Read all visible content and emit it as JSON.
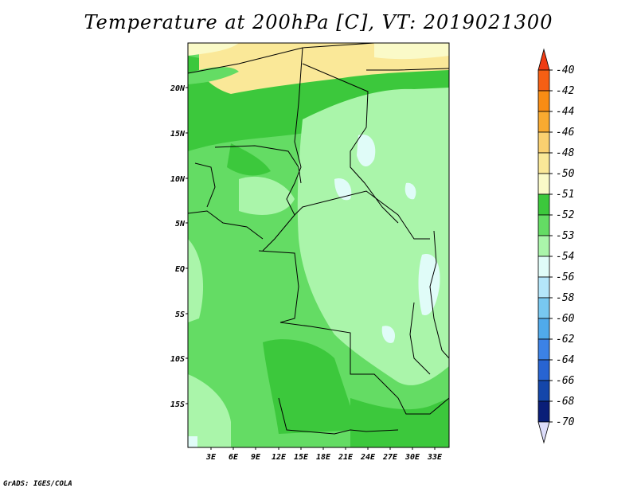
{
  "title": "Temperature at 200hPa [C], VT: 2019021300",
  "footer": "GrADS: IGES/COLA",
  "map": {
    "lat_labels": [
      "20N",
      "15N",
      "10N",
      "5N",
      "EQ",
      "5S",
      "10S",
      "15S"
    ],
    "lon_labels": [
      "3E",
      "6E",
      "9E",
      "12E",
      "15E",
      "18E",
      "21E",
      "24E",
      "27E",
      "30E",
      "33E"
    ]
  },
  "colorbar": {
    "levels": [
      "-40",
      "-42",
      "-44",
      "-46",
      "-48",
      "-50",
      "-51",
      "-52",
      "-53",
      "-54",
      "-56",
      "-58",
      "-60",
      "-62",
      "-64",
      "-66",
      "-68",
      "-70"
    ],
    "colors": [
      "#f03c14",
      "#f55f14",
      "#f88c14",
      "#f8aa30",
      "#fad070",
      "#fae898",
      "#fafac8",
      "#3cc83c",
      "#64dc64",
      "#aaf5aa",
      "#e0fcf8",
      "#b4e6fa",
      "#78c8f0",
      "#50aaeb",
      "#3c82e6",
      "#2864d2",
      "#1446aa",
      "#0a1e78",
      "#ddddfa"
    ]
  }
}
